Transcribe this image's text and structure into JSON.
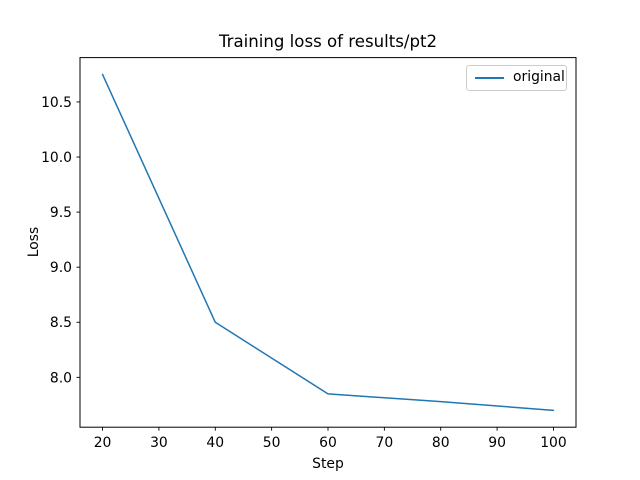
{
  "chart_data": {
    "type": "line",
    "title": "Training loss of results/pt2",
    "xlabel": "Step",
    "ylabel": "Loss",
    "x": [
      20,
      40,
      60,
      80,
      100
    ],
    "series": [
      {
        "name": "original",
        "color": "#1f77b4",
        "values": [
          10.75,
          8.5,
          7.85,
          7.78,
          7.7
        ]
      }
    ],
    "xlim": [
      16,
      104
    ],
    "ylim": [
      7.5475,
      10.9025
    ],
    "xticks": [
      20,
      30,
      40,
      50,
      60,
      70,
      80,
      90,
      100
    ],
    "xtick_labels": [
      "20",
      "30",
      "40",
      "50",
      "60",
      "70",
      "80",
      "90",
      "100"
    ],
    "yticks": [
      8.0,
      8.5,
      9.0,
      9.5,
      10.0,
      10.5
    ],
    "ytick_labels": [
      "8.0",
      "8.5",
      "9.0",
      "9.5",
      "10.0",
      "10.5"
    ],
    "grid": false,
    "legend": {
      "position": "upper right",
      "entries": [
        "original"
      ]
    }
  },
  "colors": {
    "background": "#ffffff",
    "spine": "#000000",
    "tick": "#000000",
    "text": "#000000",
    "series0": "#1f77b4",
    "legend_border": "#cccccc"
  }
}
